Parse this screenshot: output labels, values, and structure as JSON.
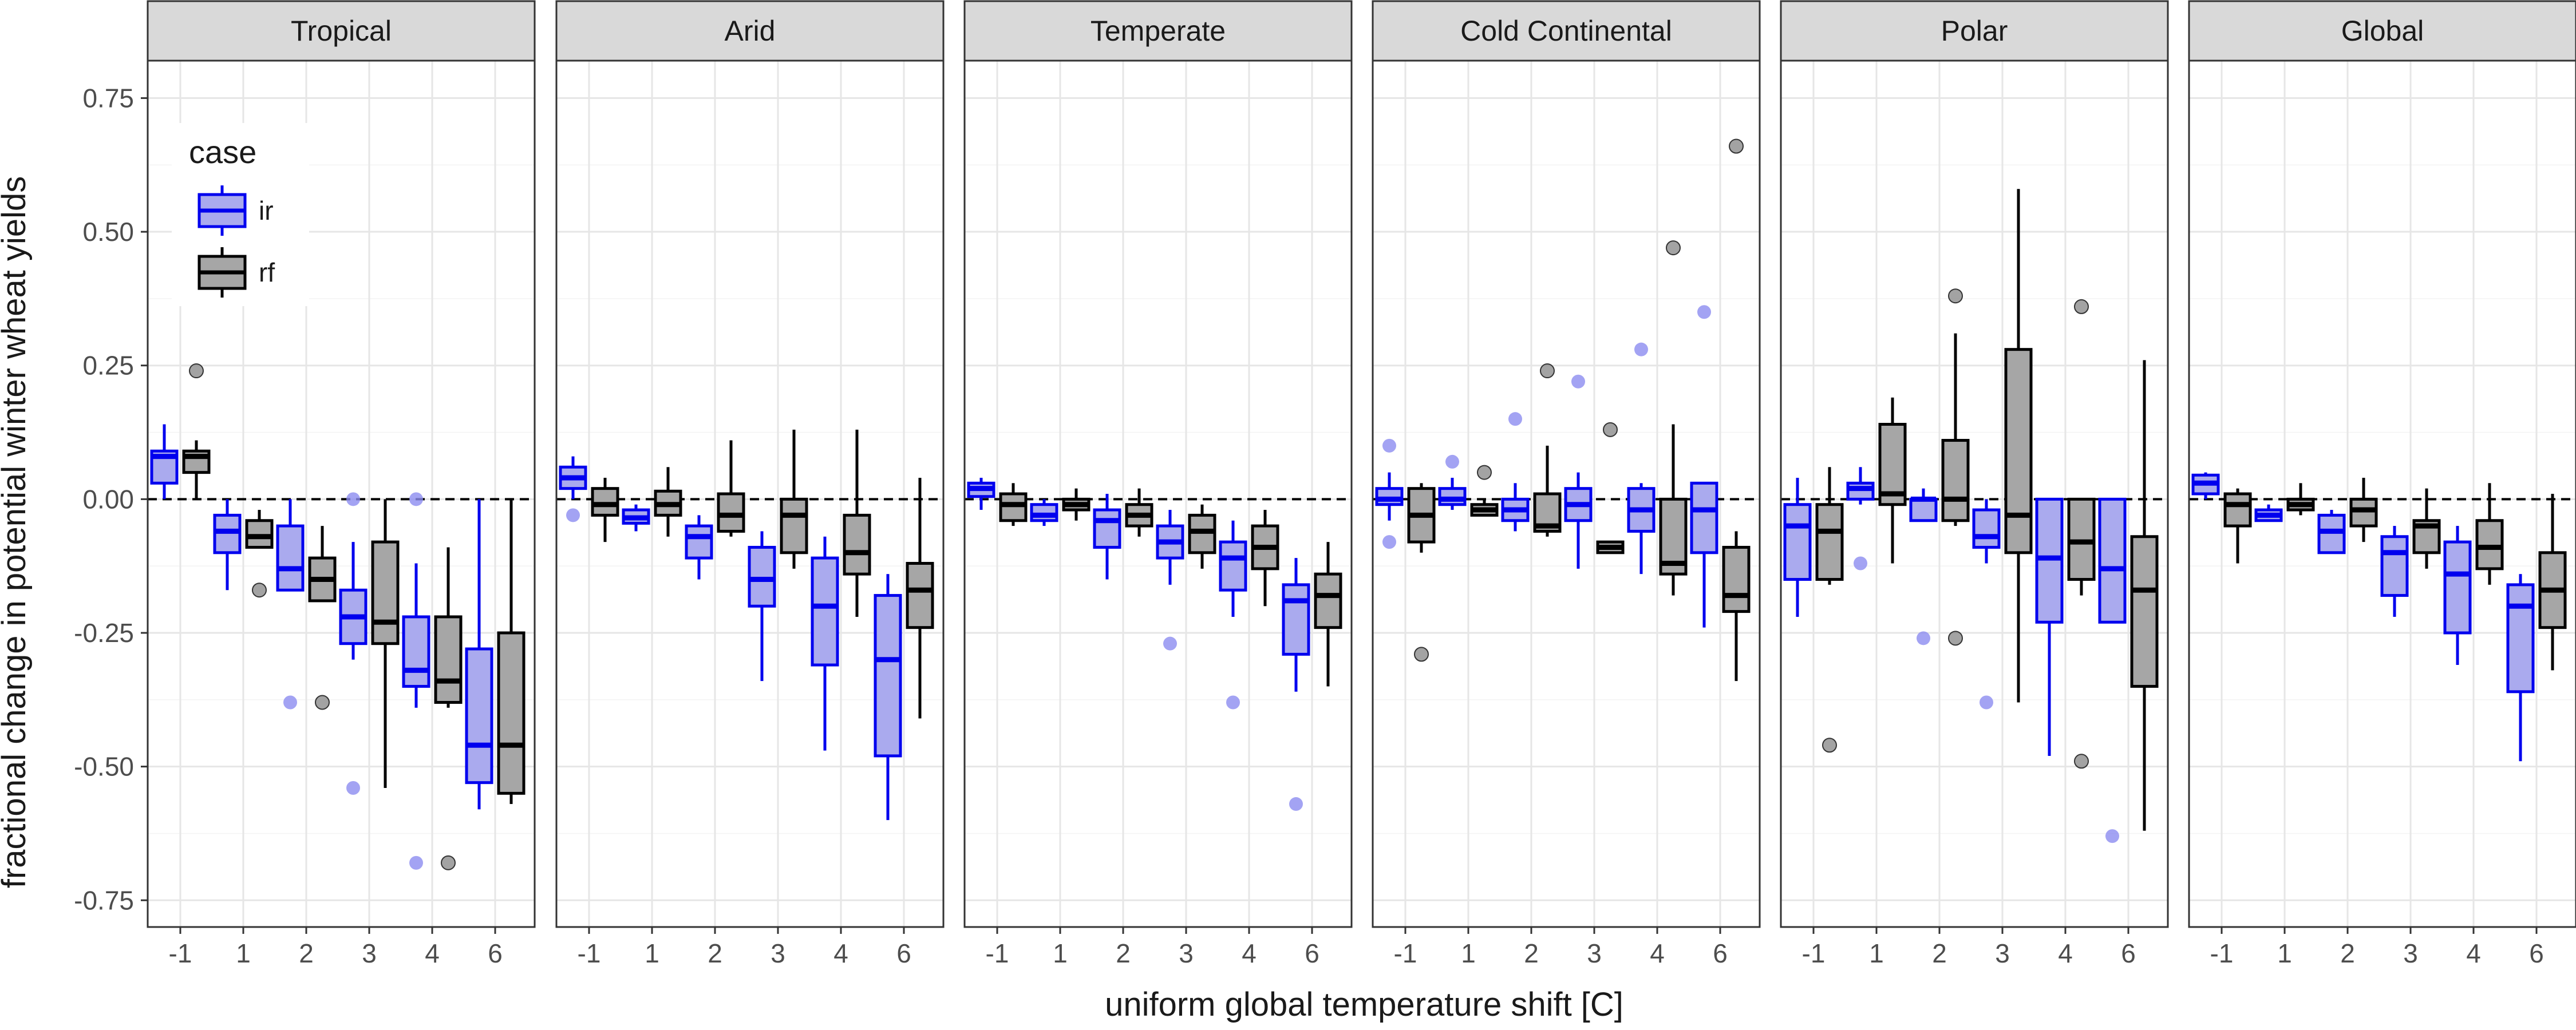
{
  "chart_data": {
    "type": "box",
    "xlabel": "uniform global temperature shift [C]",
    "ylabel": "fractional change in potential winter wheat yields",
    "ylim": [
      -0.8,
      0.82
    ],
    "y_ticks": [
      "0.75",
      "0.50",
      "0.25",
      "0.00",
      "-0.25",
      "-0.50",
      "-0.75"
    ],
    "y_tick_values": [
      0.75,
      0.5,
      0.25,
      0.0,
      -0.25,
      -0.5,
      -0.75
    ],
    "categories": [
      "-1",
      "1",
      "2",
      "3",
      "4",
      "6"
    ],
    "reference_line": 0.0,
    "legend": {
      "title": "case",
      "placement": "top-left inside first panel",
      "entries": [
        {
          "key": "ir",
          "label": "ir",
          "fill": "#aaaaee",
          "stroke": "#0000ee"
        },
        {
          "key": "rf",
          "label": "rf",
          "fill": "#a6a6a6",
          "stroke": "#000000"
        }
      ]
    },
    "colors": {
      "ir_stroke": "#0000ee",
      "ir_fill": "#aaaaee",
      "ir_outlier": "#8c8cf0",
      "rf_stroke": "#000000",
      "rf_fill": "#a6a6a6",
      "rf_outlier": "#8c8c8c"
    },
    "facets": [
      {
        "name": "Tropical",
        "boxes": [
          {
            "cat": "-1",
            "case": "ir",
            "q1": 0.03,
            "median": 0.08,
            "q3": 0.09,
            "lo": 0.0,
            "hi": 0.14,
            "outliers": []
          },
          {
            "cat": "-1",
            "case": "rf",
            "q1": 0.05,
            "median": 0.08,
            "q3": 0.09,
            "lo": 0.0,
            "hi": 0.11,
            "outliers": [
              0.24
            ]
          },
          {
            "cat": "1",
            "case": "ir",
            "q1": -0.1,
            "median": -0.06,
            "q3": -0.03,
            "lo": -0.17,
            "hi": 0.0,
            "outliers": []
          },
          {
            "cat": "1",
            "case": "rf",
            "q1": -0.09,
            "median": -0.07,
            "q3": -0.04,
            "lo": -0.09,
            "hi": -0.02,
            "outliers": [
              -0.17
            ]
          },
          {
            "cat": "2",
            "case": "ir",
            "q1": -0.17,
            "median": -0.13,
            "q3": -0.05,
            "lo": -0.17,
            "hi": 0.0,
            "outliers": [
              -0.38
            ]
          },
          {
            "cat": "2",
            "case": "rf",
            "q1": -0.19,
            "median": -0.15,
            "q3": -0.11,
            "lo": -0.19,
            "hi": -0.05,
            "outliers": [
              -0.38
            ]
          },
          {
            "cat": "3",
            "case": "ir",
            "q1": -0.27,
            "median": -0.22,
            "q3": -0.17,
            "lo": -0.3,
            "hi": -0.08,
            "outliers": [
              -0.54,
              0.0
            ]
          },
          {
            "cat": "3",
            "case": "rf",
            "q1": -0.27,
            "median": -0.23,
            "q3": -0.08,
            "lo": -0.54,
            "hi": 0.0,
            "outliers": []
          },
          {
            "cat": "4",
            "case": "ir",
            "q1": -0.35,
            "median": -0.32,
            "q3": -0.22,
            "lo": -0.39,
            "hi": -0.12,
            "outliers": [
              -0.68,
              0.0
            ]
          },
          {
            "cat": "4",
            "case": "rf",
            "q1": -0.38,
            "median": -0.34,
            "q3": -0.22,
            "lo": -0.39,
            "hi": -0.09,
            "outliers": [
              -0.68
            ]
          },
          {
            "cat": "6",
            "case": "ir",
            "q1": -0.53,
            "median": -0.46,
            "q3": -0.28,
            "lo": -0.58,
            "hi": 0.0,
            "outliers": []
          },
          {
            "cat": "6",
            "case": "rf",
            "q1": -0.55,
            "median": -0.46,
            "q3": -0.25,
            "lo": -0.57,
            "hi": 0.0,
            "outliers": []
          }
        ]
      },
      {
        "name": "Arid",
        "boxes": [
          {
            "cat": "-1",
            "case": "ir",
            "q1": 0.02,
            "median": 0.04,
            "q3": 0.06,
            "lo": 0.0,
            "hi": 0.08,
            "outliers": [
              -0.03
            ]
          },
          {
            "cat": "-1",
            "case": "rf",
            "q1": -0.03,
            "median": -0.01,
            "q3": 0.02,
            "lo": -0.08,
            "hi": 0.04,
            "outliers": []
          },
          {
            "cat": "1",
            "case": "ir",
            "q1": -0.045,
            "median": -0.035,
            "q3": -0.02,
            "lo": -0.06,
            "hi": -0.01,
            "outliers": []
          },
          {
            "cat": "1",
            "case": "rf",
            "q1": -0.03,
            "median": -0.01,
            "q3": 0.015,
            "lo": -0.07,
            "hi": 0.06,
            "outliers": []
          },
          {
            "cat": "2",
            "case": "ir",
            "q1": -0.11,
            "median": -0.07,
            "q3": -0.05,
            "lo": -0.15,
            "hi": -0.03,
            "outliers": []
          },
          {
            "cat": "2",
            "case": "rf",
            "q1": -0.06,
            "median": -0.03,
            "q3": 0.01,
            "lo": -0.07,
            "hi": 0.11,
            "outliers": []
          },
          {
            "cat": "3",
            "case": "ir",
            "q1": -0.2,
            "median": -0.15,
            "q3": -0.09,
            "lo": -0.34,
            "hi": -0.06,
            "outliers": []
          },
          {
            "cat": "3",
            "case": "rf",
            "q1": -0.1,
            "median": -0.03,
            "q3": 0.0,
            "lo": -0.13,
            "hi": 0.13,
            "outliers": []
          },
          {
            "cat": "4",
            "case": "ir",
            "q1": -0.31,
            "median": -0.2,
            "q3": -0.11,
            "lo": -0.47,
            "hi": -0.07,
            "outliers": []
          },
          {
            "cat": "4",
            "case": "rf",
            "q1": -0.14,
            "median": -0.1,
            "q3": -0.03,
            "lo": -0.22,
            "hi": 0.13,
            "outliers": []
          },
          {
            "cat": "6",
            "case": "ir",
            "q1": -0.48,
            "median": -0.3,
            "q3": -0.18,
            "lo": -0.6,
            "hi": -0.14,
            "outliers": []
          },
          {
            "cat": "6",
            "case": "rf",
            "q1": -0.24,
            "median": -0.17,
            "q3": -0.12,
            "lo": -0.41,
            "hi": 0.04,
            "outliers": []
          }
        ]
      },
      {
        "name": "Temperate",
        "boxes": [
          {
            "cat": "-1",
            "case": "ir",
            "q1": 0.005,
            "median": 0.02,
            "q3": 0.03,
            "lo": -0.02,
            "hi": 0.04,
            "outliers": []
          },
          {
            "cat": "-1",
            "case": "rf",
            "q1": -0.04,
            "median": -0.01,
            "q3": 0.01,
            "lo": -0.05,
            "hi": 0.03,
            "outliers": []
          },
          {
            "cat": "1",
            "case": "ir",
            "q1": -0.04,
            "median": -0.03,
            "q3": -0.01,
            "lo": -0.05,
            "hi": 0.0,
            "outliers": []
          },
          {
            "cat": "1",
            "case": "rf",
            "q1": -0.02,
            "median": -0.01,
            "q3": 0.0,
            "lo": -0.04,
            "hi": 0.02,
            "outliers": []
          },
          {
            "cat": "2",
            "case": "ir",
            "q1": -0.09,
            "median": -0.04,
            "q3": -0.02,
            "lo": -0.15,
            "hi": 0.01,
            "outliers": []
          },
          {
            "cat": "2",
            "case": "rf",
            "q1": -0.05,
            "median": -0.03,
            "q3": -0.01,
            "lo": -0.07,
            "hi": 0.02,
            "outliers": []
          },
          {
            "cat": "3",
            "case": "ir",
            "q1": -0.11,
            "median": -0.08,
            "q3": -0.05,
            "lo": -0.16,
            "hi": -0.02,
            "outliers": [
              -0.27
            ]
          },
          {
            "cat": "3",
            "case": "rf",
            "q1": -0.1,
            "median": -0.06,
            "q3": -0.03,
            "lo": -0.13,
            "hi": -0.01,
            "outliers": []
          },
          {
            "cat": "4",
            "case": "ir",
            "q1": -0.17,
            "median": -0.11,
            "q3": -0.08,
            "lo": -0.22,
            "hi": -0.04,
            "outliers": [
              -0.38
            ]
          },
          {
            "cat": "4",
            "case": "rf",
            "q1": -0.13,
            "median": -0.09,
            "q3": -0.05,
            "lo": -0.2,
            "hi": -0.02,
            "outliers": []
          },
          {
            "cat": "6",
            "case": "ir",
            "q1": -0.29,
            "median": -0.19,
            "q3": -0.16,
            "lo": -0.36,
            "hi": -0.11,
            "outliers": [
              -0.57
            ]
          },
          {
            "cat": "6",
            "case": "rf",
            "q1": -0.24,
            "median": -0.18,
            "q3": -0.14,
            "lo": -0.35,
            "hi": -0.08,
            "outliers": []
          }
        ]
      },
      {
        "name": "Cold Continental",
        "boxes": [
          {
            "cat": "-1",
            "case": "ir",
            "q1": -0.01,
            "median": 0.0,
            "q3": 0.02,
            "lo": -0.04,
            "hi": 0.05,
            "outliers": [
              0.1,
              -0.08
            ]
          },
          {
            "cat": "-1",
            "case": "rf",
            "q1": -0.08,
            "median": -0.03,
            "q3": 0.02,
            "lo": -0.1,
            "hi": 0.03,
            "outliers": [
              -0.29
            ]
          },
          {
            "cat": "1",
            "case": "ir",
            "q1": -0.01,
            "median": 0.0,
            "q3": 0.02,
            "lo": -0.02,
            "hi": 0.04,
            "outliers": [
              0.07
            ]
          },
          {
            "cat": "1",
            "case": "rf",
            "q1": -0.03,
            "median": -0.02,
            "q3": -0.01,
            "lo": -0.03,
            "hi": 0.0,
            "outliers": [
              0.05
            ]
          },
          {
            "cat": "2",
            "case": "ir",
            "q1": -0.04,
            "median": -0.02,
            "q3": 0.0,
            "lo": -0.06,
            "hi": 0.03,
            "outliers": [
              0.15
            ]
          },
          {
            "cat": "2",
            "case": "rf",
            "q1": -0.06,
            "median": -0.05,
            "q3": 0.01,
            "lo": -0.07,
            "hi": 0.1,
            "outliers": [
              0.24
            ]
          },
          {
            "cat": "3",
            "case": "ir",
            "q1": -0.04,
            "median": -0.01,
            "q3": 0.02,
            "lo": -0.13,
            "hi": 0.05,
            "outliers": [
              0.22
            ]
          },
          {
            "cat": "3",
            "case": "rf",
            "q1": -0.1,
            "median": -0.09,
            "q3": -0.08,
            "lo": -0.1,
            "hi": -0.08,
            "outliers": [
              0.13
            ]
          },
          {
            "cat": "4",
            "case": "ir",
            "q1": -0.06,
            "median": -0.02,
            "q3": 0.02,
            "lo": -0.14,
            "hi": 0.03,
            "outliers": [
              0.28
            ]
          },
          {
            "cat": "4",
            "case": "rf",
            "q1": -0.14,
            "median": -0.12,
            "q3": 0.0,
            "lo": -0.18,
            "hi": 0.14,
            "outliers": [
              0.47
            ]
          },
          {
            "cat": "6",
            "case": "ir",
            "q1": -0.1,
            "median": -0.02,
            "q3": 0.03,
            "lo": -0.24,
            "hi": 0.03,
            "outliers": [
              0.35
            ]
          },
          {
            "cat": "6",
            "case": "rf",
            "q1": -0.21,
            "median": -0.18,
            "q3": -0.09,
            "lo": -0.34,
            "hi": -0.06,
            "outliers": [
              0.66
            ]
          }
        ]
      },
      {
        "name": "Polar",
        "boxes": [
          {
            "cat": "-1",
            "case": "ir",
            "q1": -0.15,
            "median": -0.05,
            "q3": -0.01,
            "lo": -0.22,
            "hi": 0.04,
            "outliers": []
          },
          {
            "cat": "-1",
            "case": "rf",
            "q1": -0.15,
            "median": -0.06,
            "q3": -0.01,
            "lo": -0.16,
            "hi": 0.06,
            "outliers": [
              -0.46
            ]
          },
          {
            "cat": "1",
            "case": "ir",
            "q1": 0.0,
            "median": 0.02,
            "q3": 0.03,
            "lo": -0.01,
            "hi": 0.06,
            "outliers": [
              -0.12
            ]
          },
          {
            "cat": "1",
            "case": "rf",
            "q1": -0.01,
            "median": 0.01,
            "q3": 0.14,
            "lo": -0.12,
            "hi": 0.19,
            "outliers": []
          },
          {
            "cat": "2",
            "case": "ir",
            "q1": -0.04,
            "median": 0.0,
            "q3": 0.0,
            "lo": -0.04,
            "hi": 0.02,
            "outliers": [
              -0.26
            ]
          },
          {
            "cat": "2",
            "case": "rf",
            "q1": -0.04,
            "median": 0.0,
            "q3": 0.11,
            "lo": -0.05,
            "hi": 0.31,
            "outliers": [
              0.38,
              -0.26
            ]
          },
          {
            "cat": "3",
            "case": "ir",
            "q1": -0.09,
            "median": -0.07,
            "q3": -0.02,
            "lo": -0.12,
            "hi": 0.0,
            "outliers": [
              -0.38
            ]
          },
          {
            "cat": "3",
            "case": "rf",
            "q1": -0.1,
            "median": -0.03,
            "q3": 0.28,
            "lo": -0.38,
            "hi": 0.58,
            "outliers": []
          },
          {
            "cat": "4",
            "case": "ir",
            "q1": -0.23,
            "median": -0.11,
            "q3": 0.0,
            "lo": -0.48,
            "hi": 0.0,
            "outliers": []
          },
          {
            "cat": "4",
            "case": "rf",
            "q1": -0.15,
            "median": -0.08,
            "q3": 0.0,
            "lo": -0.18,
            "hi": 0.0,
            "outliers": [
              0.36,
              -0.49
            ]
          },
          {
            "cat": "6",
            "case": "ir",
            "q1": -0.23,
            "median": -0.13,
            "q3": 0.0,
            "lo": -0.23,
            "hi": 0.0,
            "outliers": [
              -0.63
            ]
          },
          {
            "cat": "6",
            "case": "rf",
            "q1": -0.35,
            "median": -0.17,
            "q3": -0.07,
            "lo": -0.62,
            "hi": 0.26,
            "outliers": []
          }
        ]
      },
      {
        "name": "Global",
        "boxes": [
          {
            "cat": "-1",
            "case": "ir",
            "q1": 0.01,
            "median": 0.03,
            "q3": 0.045,
            "lo": 0.0,
            "hi": 0.05,
            "outliers": []
          },
          {
            "cat": "-1",
            "case": "rf",
            "q1": -0.05,
            "median": -0.01,
            "q3": 0.01,
            "lo": -0.12,
            "hi": 0.02,
            "outliers": []
          },
          {
            "cat": "1",
            "case": "ir",
            "q1": -0.04,
            "median": -0.03,
            "q3": -0.02,
            "lo": -0.04,
            "hi": -0.01,
            "outliers": []
          },
          {
            "cat": "1",
            "case": "rf",
            "q1": -0.02,
            "median": -0.01,
            "q3": 0.0,
            "lo": -0.03,
            "hi": 0.03,
            "outliers": []
          },
          {
            "cat": "2",
            "case": "ir",
            "q1": -0.1,
            "median": -0.06,
            "q3": -0.03,
            "lo": -0.1,
            "hi": -0.02,
            "outliers": []
          },
          {
            "cat": "2",
            "case": "rf",
            "q1": -0.05,
            "median": -0.02,
            "q3": 0.0,
            "lo": -0.08,
            "hi": 0.04,
            "outliers": []
          },
          {
            "cat": "3",
            "case": "ir",
            "q1": -0.18,
            "median": -0.1,
            "q3": -0.07,
            "lo": -0.22,
            "hi": -0.05,
            "outliers": []
          },
          {
            "cat": "3",
            "case": "rf",
            "q1": -0.1,
            "median": -0.05,
            "q3": -0.04,
            "lo": -0.13,
            "hi": 0.02,
            "outliers": []
          },
          {
            "cat": "4",
            "case": "ir",
            "q1": -0.25,
            "median": -0.14,
            "q3": -0.08,
            "lo": -0.31,
            "hi": -0.05,
            "outliers": []
          },
          {
            "cat": "4",
            "case": "rf",
            "q1": -0.13,
            "median": -0.09,
            "q3": -0.04,
            "lo": -0.16,
            "hi": 0.03,
            "outliers": []
          },
          {
            "cat": "6",
            "case": "ir",
            "q1": -0.36,
            "median": -0.2,
            "q3": -0.16,
            "lo": -0.49,
            "hi": -0.14,
            "outliers": []
          },
          {
            "cat": "6",
            "case": "rf",
            "q1": -0.24,
            "median": -0.17,
            "q3": -0.1,
            "lo": -0.32,
            "hi": 0.01,
            "outliers": []
          }
        ]
      }
    ]
  }
}
